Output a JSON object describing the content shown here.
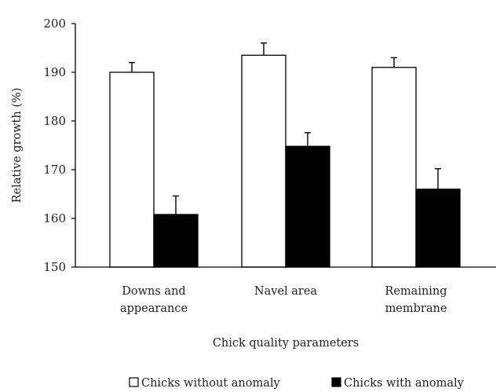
{
  "chart_data": {
    "type": "bar",
    "xlabel": "Chick quality parameters",
    "ylabel": "Relative growth (%)",
    "ylim": [
      150,
      200
    ],
    "yticks": [
      150,
      160,
      170,
      180,
      190,
      200
    ],
    "categories": [
      [
        "Downs and",
        "appearance"
      ],
      [
        "Navel area"
      ],
      [
        "Remaining",
        "membrane"
      ]
    ],
    "series": [
      {
        "name": "Chicks without anomaly",
        "values": [
          190,
          193.5,
          191
        ],
        "errors": [
          2,
          2.5,
          2
        ],
        "fill": "#ffffff"
      },
      {
        "name": "Chicks with anomaly",
        "values": [
          160.8,
          174.8,
          166
        ],
        "errors": [
          3.8,
          2.8,
          4.2
        ],
        "fill": "#000000"
      }
    ],
    "grid": false,
    "legend_position": "bottom"
  }
}
